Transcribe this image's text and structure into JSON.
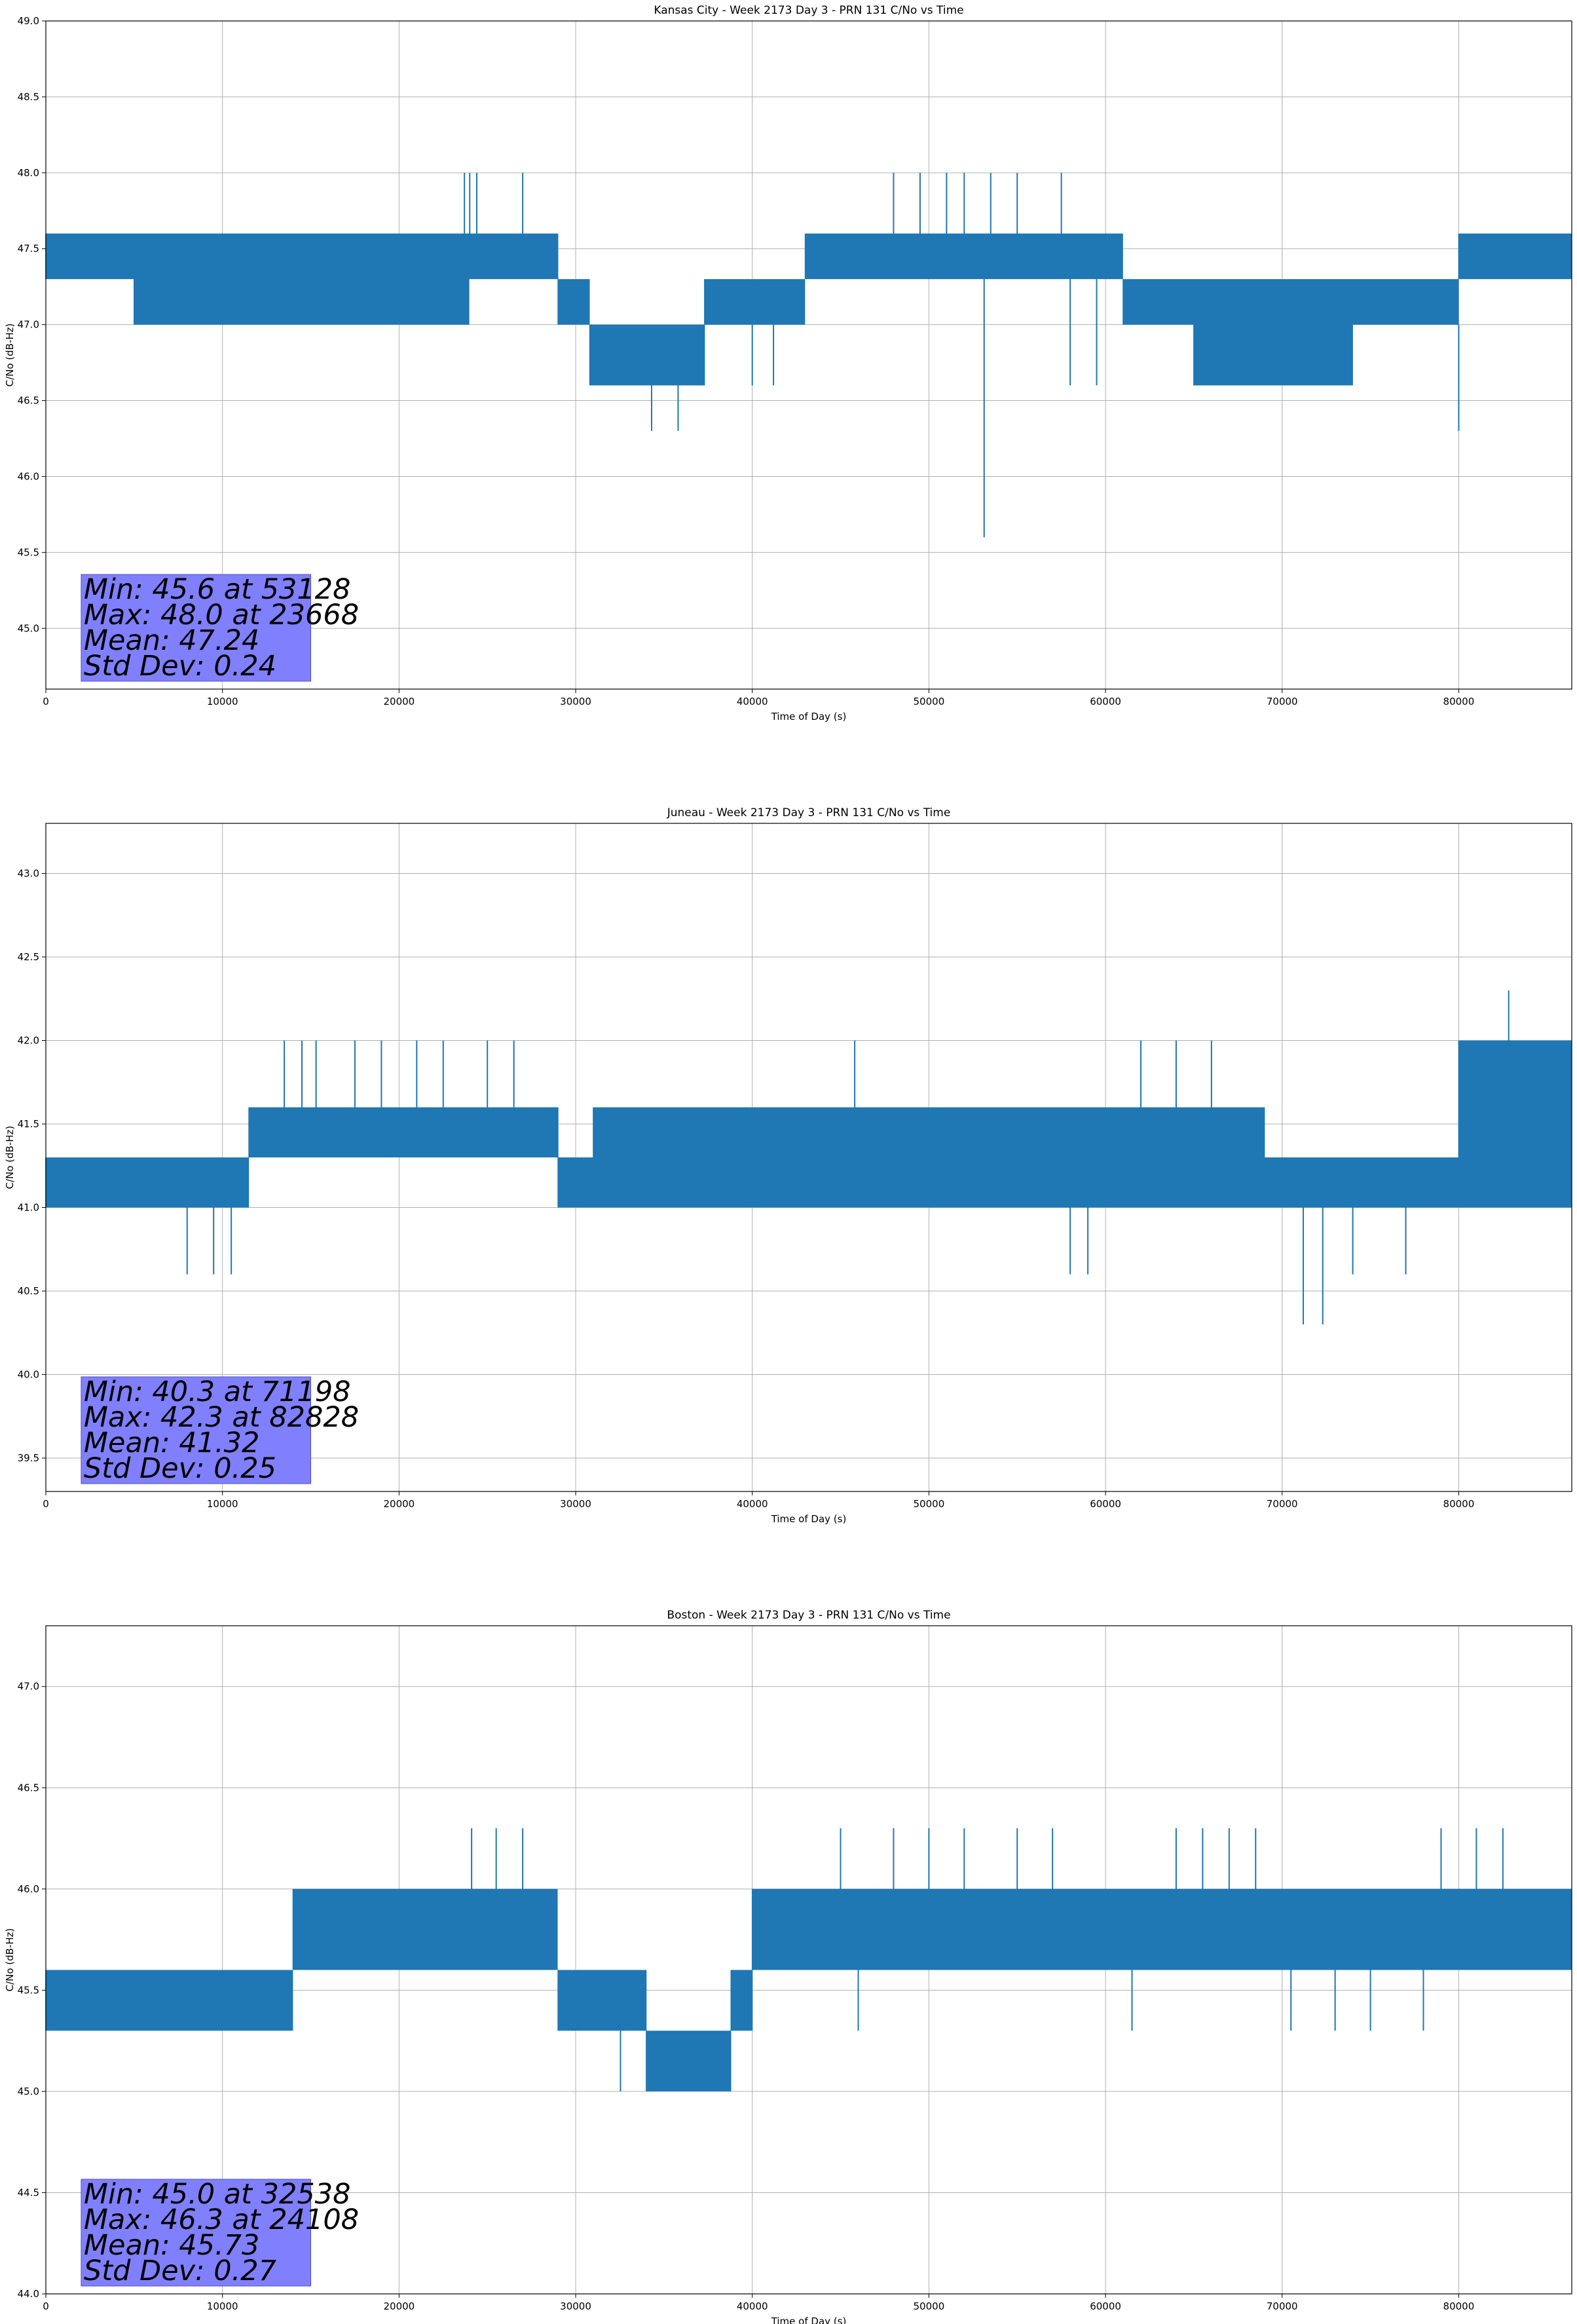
{
  "colors": {
    "line": "#1f77b4",
    "stats_box": "#8080ff",
    "grid": "#b0b0b0",
    "axes": "#000000"
  },
  "chart_data": [
    {
      "type": "line",
      "title": "Kansas City - Week 2173 Day 3 - PRN 131 C/No vs Time",
      "xlabel": "Time of Day (s)",
      "ylabel": "C/No (dB-Hz)",
      "xlim": [
        0,
        86400
      ],
      "ylim": [
        44.6,
        49.0
      ],
      "xticks": [
        0,
        10000,
        20000,
        30000,
        40000,
        50000,
        60000,
        70000,
        80000
      ],
      "yticks": [
        45.0,
        45.5,
        46.0,
        46.5,
        47.0,
        47.5,
        48.0,
        48.5,
        49.0
      ],
      "grid": true,
      "series": [
        {
          "values_approx_by_segment": [
            {
              "x": [
                0,
                5000
              ],
              "range": [
                47.3,
                47.6
              ],
              "dips": [
                47.0
              ]
            },
            {
              "x": [
                5000,
                24000
              ],
              "range": [
                47.0,
                47.6
              ],
              "spikes": [
                48.0
              ]
            },
            {
              "x": [
                24000,
                29000
              ],
              "range": [
                47.3,
                47.6
              ],
              "spikes": [
                48.0
              ]
            },
            {
              "x": [
                29000,
                37300
              ],
              "range": [
                46.6,
                47.3
              ],
              "dips": [
                46.3
              ]
            },
            {
              "x": [
                37300,
                43000
              ],
              "range": [
                47.0,
                47.3
              ],
              "dips": [
                46.6
              ]
            },
            {
              "x": [
                43000,
                51000
              ],
              "range": [
                47.3,
                47.6
              ],
              "spikes": [
                48.0
              ]
            },
            {
              "x": [
                51000,
                61000
              ],
              "range": [
                47.3,
                47.6
              ],
              "spikes": [
                48.0
              ],
              "dips": [
                45.6
              ]
            },
            {
              "x": [
                61000,
                80000
              ],
              "range": [
                46.6,
                47.3
              ],
              "dips": [
                46.3
              ]
            },
            {
              "x": [
                80000,
                86400
              ],
              "range": [
                47.3,
                47.6
              ]
            }
          ]
        }
      ],
      "stats": {
        "min": "Min: 45.6 at 53128",
        "max": "Max: 48.0 at 23668",
        "mean": "Mean: 47.24",
        "std": "Std Dev: 0.24"
      }
    },
    {
      "type": "line",
      "title": "Juneau - Week 2173 Day 3 - PRN 131 C/No vs Time",
      "xlabel": "Time of Day (s)",
      "ylabel": "C/No (dB-Hz)",
      "xlim": [
        0,
        86400
      ],
      "ylim": [
        39.3,
        43.3
      ],
      "xticks": [
        0,
        10000,
        20000,
        30000,
        40000,
        50000,
        60000,
        70000,
        80000
      ],
      "yticks": [
        39.5,
        40.0,
        40.5,
        41.0,
        41.5,
        42.0,
        42.5,
        43.0
      ],
      "grid": true,
      "series": [
        {
          "values_approx_by_segment": [
            {
              "x": [
                0,
                11500
              ],
              "range": [
                41.0,
                41.3
              ],
              "dips": [
                40.6
              ]
            },
            {
              "x": [
                11500,
                29000
              ],
              "range": [
                41.3,
                41.6
              ],
              "spikes": [
                42.0
              ]
            },
            {
              "x": [
                29000,
                60000
              ],
              "range": [
                41.0,
                41.6
              ]
            },
            {
              "x": [
                60000,
                80000
              ],
              "range": [
                41.0,
                41.6
              ],
              "spikes": [
                42.0
              ],
              "dips": [
                40.3
              ]
            },
            {
              "x": [
                80000,
                86400
              ],
              "range": [
                41.0,
                42.0
              ],
              "spikes": [
                42.3
              ]
            }
          ]
        }
      ],
      "stats": {
        "min": "Min: 40.3 at 71198",
        "max": "Max: 42.3 at 82828",
        "mean": "Mean: 41.32",
        "std": "Std Dev: 0.25"
      }
    },
    {
      "type": "line",
      "title": "Boston - Week 2173 Day 3 - PRN 131 C/No vs Time",
      "xlabel": "Time of Day (s)",
      "ylabel": "C/No (dB-Hz)",
      "xlim": [
        0,
        86400
      ],
      "ylim": [
        44.0,
        47.3
      ],
      "xticks": [
        0,
        10000,
        20000,
        30000,
        40000,
        50000,
        60000,
        70000,
        80000
      ],
      "yticks": [
        44.0,
        44.5,
        45.0,
        45.5,
        46.0,
        46.5,
        47.0
      ],
      "grid": true,
      "series": [
        {
          "values_approx_by_segment": [
            {
              "x": [
                0,
                14000
              ],
              "range": [
                45.3,
                45.6
              ],
              "spikes": [
                46.0
              ]
            },
            {
              "x": [
                14000,
                29000
              ],
              "range": [
                45.6,
                46.0
              ],
              "spikes": [
                46.3
              ]
            },
            {
              "x": [
                29000,
                34000
              ],
              "range": [
                45.3,
                45.6
              ]
            },
            {
              "x": [
                34000,
                38800
              ],
              "range": [
                45.0,
                45.3
              ]
            },
            {
              "x": [
                38800,
                40000
              ],
              "range": [
                45.3,
                45.6
              ]
            },
            {
              "x": [
                40000,
                86400
              ],
              "range": [
                45.6,
                46.0
              ],
              "spikes": [
                46.3
              ],
              "dips": [
                45.3
              ]
            }
          ]
        }
      ],
      "stats": {
        "min": "Min: 45.0 at 32538",
        "max": "Max: 46.3 at 24108",
        "mean": "Mean: 45.73",
        "std": "Std Dev: 0.27"
      }
    }
  ]
}
